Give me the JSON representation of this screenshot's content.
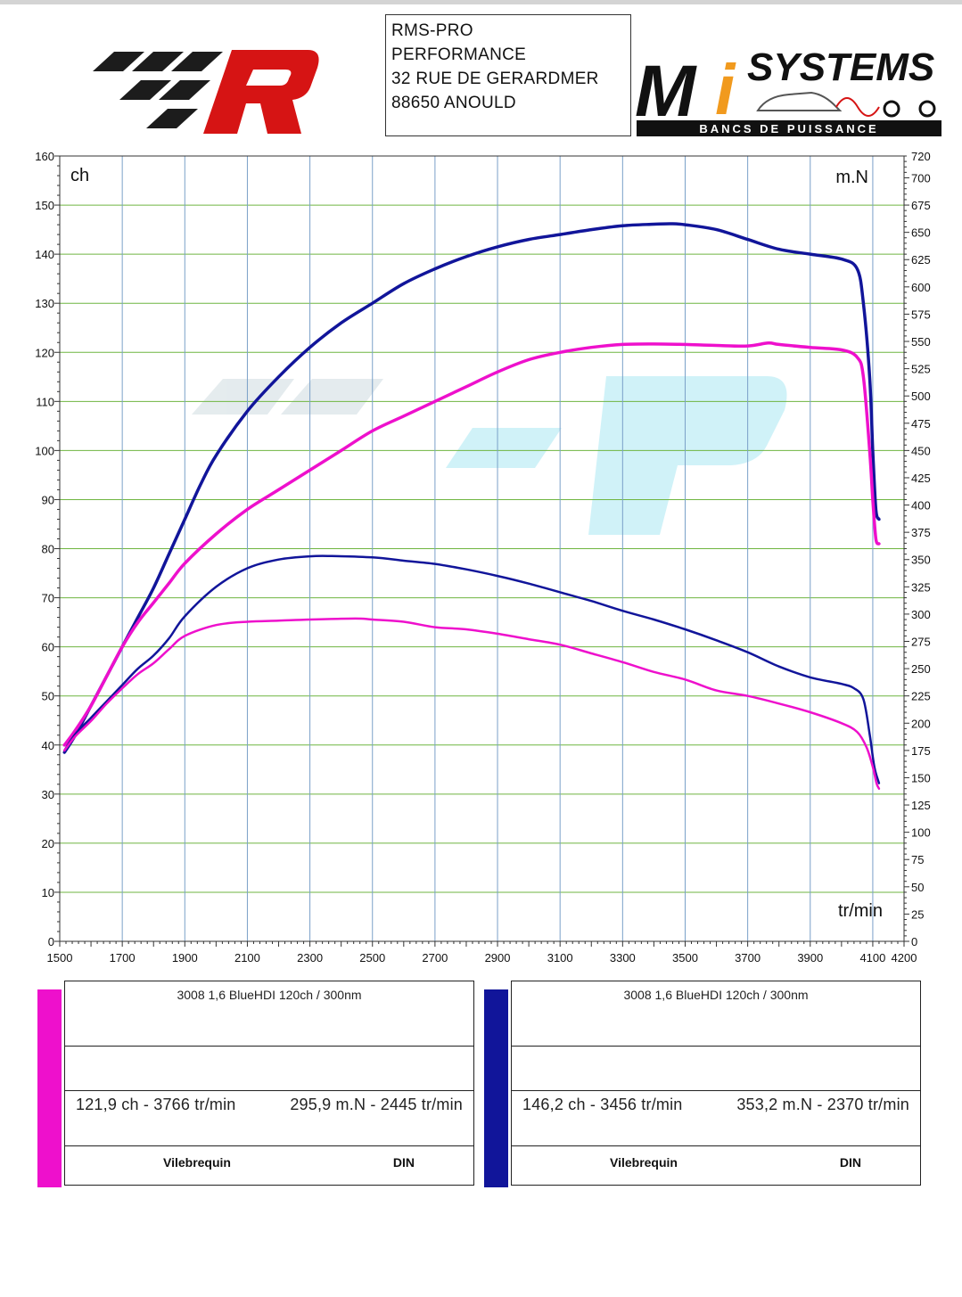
{
  "header": {
    "address_lines": [
      "RMS-PRO",
      "PERFORMANCE",
      "32 RUE DE GERARDMER",
      "88650 ANOULD"
    ],
    "brand_right": "SYSTEMS",
    "brand_right_sub": "BANCS DE PUISSANCE"
  },
  "colors": {
    "pink": "#ee10cc",
    "blue": "#11159a",
    "grid_green": "#6fb540",
    "grid_blue": "#7aa0c8"
  },
  "chart_data": {
    "type": "line",
    "xlabel": "tr/min",
    "ylabel_left": "ch",
    "ylabel_right": "m.N",
    "x_ticks": [
      1500,
      1700,
      1900,
      2100,
      2300,
      2500,
      2700,
      2900,
      3100,
      3300,
      3500,
      3700,
      3900,
      4100,
      4200
    ],
    "y_left_ticks": [
      0,
      10,
      20,
      30,
      40,
      50,
      60,
      70,
      80,
      90,
      100,
      110,
      120,
      130,
      140,
      150,
      160
    ],
    "y_right_ticks": [
      0,
      25,
      50,
      75,
      100,
      125,
      150,
      175,
      200,
      225,
      250,
      275,
      300,
      325,
      350,
      375,
      400,
      425,
      450,
      475,
      500,
      525,
      550,
      575,
      600,
      625,
      650,
      675,
      700,
      720
    ],
    "xlim": [
      1500,
      4200
    ],
    "ylim_left": [
      0,
      160
    ],
    "ylim_right": [
      0,
      720
    ],
    "grid": true,
    "series": [
      {
        "name": "3008 1,6 BlueHDI 120ch / 300nm",
        "quantity": "power",
        "axis": "left",
        "color": "#11159a",
        "x": [
          1515,
          1550,
          1600,
          1650,
          1700,
          1750,
          1800,
          1850,
          1900,
          1950,
          2000,
          2100,
          2200,
          2300,
          2400,
          2500,
          2600,
          2700,
          2800,
          2900,
          3000,
          3100,
          3200,
          3300,
          3400,
          3456,
          3500,
          3600,
          3700,
          3800,
          3900,
          4000,
          4050,
          4070,
          4090,
          4100,
          4110,
          4120
        ],
        "y": [
          38.5,
          42,
          48,
          54,
          60,
          66,
          72,
          79,
          86,
          93,
          99,
          108,
          115,
          121,
          126,
          130,
          134,
          137,
          139.5,
          141.5,
          143,
          144,
          145,
          145.8,
          146.1,
          146.2,
          146,
          145,
          143,
          141,
          140,
          139,
          137,
          130,
          115,
          100,
          88,
          86
        ]
      },
      {
        "name": "3008 1,6 BlueHDI 120ch / 300nm",
        "quantity": "power",
        "axis": "left",
        "color": "#ee10cc",
        "x": [
          1515,
          1550,
          1600,
          1650,
          1700,
          1750,
          1800,
          1850,
          1900,
          2000,
          2100,
          2200,
          2300,
          2400,
          2500,
          2600,
          2700,
          2800,
          2900,
          3000,
          3100,
          3200,
          3300,
          3400,
          3500,
          3600,
          3700,
          3766,
          3800,
          3900,
          4000,
          4050,
          4070,
          4090,
          4100,
          4110,
          4120
        ],
        "y": [
          40,
          43,
          48,
          54,
          60,
          65,
          69,
          73,
          77,
          83,
          88,
          92,
          96,
          100,
          104,
          107,
          110,
          113,
          116,
          118.5,
          120,
          121,
          121.6,
          121.7,
          121.6,
          121.4,
          121.3,
          121.9,
          121.6,
          121,
          120.5,
          119,
          115,
          100,
          90,
          82,
          81
        ]
      },
      {
        "name": "3008 1,6 BlueHDI 120ch / 300nm",
        "quantity": "torque",
        "axis": "right",
        "color": "#11159a",
        "x": [
          1515,
          1550,
          1600,
          1650,
          1700,
          1750,
          1800,
          1850,
          1900,
          2000,
          2100,
          2200,
          2300,
          2370,
          2500,
          2600,
          2700,
          2800,
          2900,
          3000,
          3100,
          3200,
          3300,
          3400,
          3500,
          3600,
          3700,
          3800,
          3900,
          4000,
          4040,
          4070,
          4090,
          4105,
          4120
        ],
        "y": [
          175,
          190,
          205,
          220,
          235,
          250,
          262,
          278,
          298,
          325,
          342,
          350,
          353,
          353.2,
          352,
          349,
          346,
          341,
          335,
          328,
          320,
          312,
          303,
          295,
          286,
          276,
          265,
          252,
          242,
          236,
          232,
          222,
          190,
          160,
          145
        ]
      },
      {
        "name": "3008 1,6 BlueHDI 120ch / 300nm",
        "quantity": "torque",
        "axis": "right",
        "color": "#ee10cc",
        "x": [
          1515,
          1550,
          1600,
          1650,
          1700,
          1750,
          1800,
          1850,
          1900,
          2000,
          2100,
          2200,
          2300,
          2445,
          2500,
          2600,
          2700,
          2800,
          2900,
          3000,
          3100,
          3200,
          3300,
          3400,
          3500,
          3600,
          3700,
          3800,
          3900,
          4000,
          4050,
          4080,
          4100,
          4112,
          4120
        ],
        "y": [
          175,
          188,
          202,
          218,
          232,
          245,
          255,
          268,
          280,
          290,
          293,
          294,
          295,
          295.9,
          295,
          293,
          288,
          286,
          282,
          277,
          272,
          264,
          256,
          247,
          240,
          230,
          225,
          218,
          210,
          200,
          192,
          178,
          160,
          145,
          140
        ]
      }
    ]
  },
  "legend_panels": [
    {
      "color": "#ee10cc",
      "title": "3008 1,6 BlueHDI 120ch / 300nm",
      "stat_power": "121,9 ch - 3766 tr/min",
      "stat_torque": "295,9 m.N - 2445 tr/min",
      "footer_left": "Vilebrequin",
      "footer_right": "DIN"
    },
    {
      "color": "#11159a",
      "title": "3008 1,6 BlueHDI 120ch / 300nm",
      "stat_power": "146,2 ch - 3456 tr/min",
      "stat_torque": "353,2 m.N - 2370 tr/min",
      "footer_left": "Vilebrequin",
      "footer_right": "DIN"
    }
  ]
}
